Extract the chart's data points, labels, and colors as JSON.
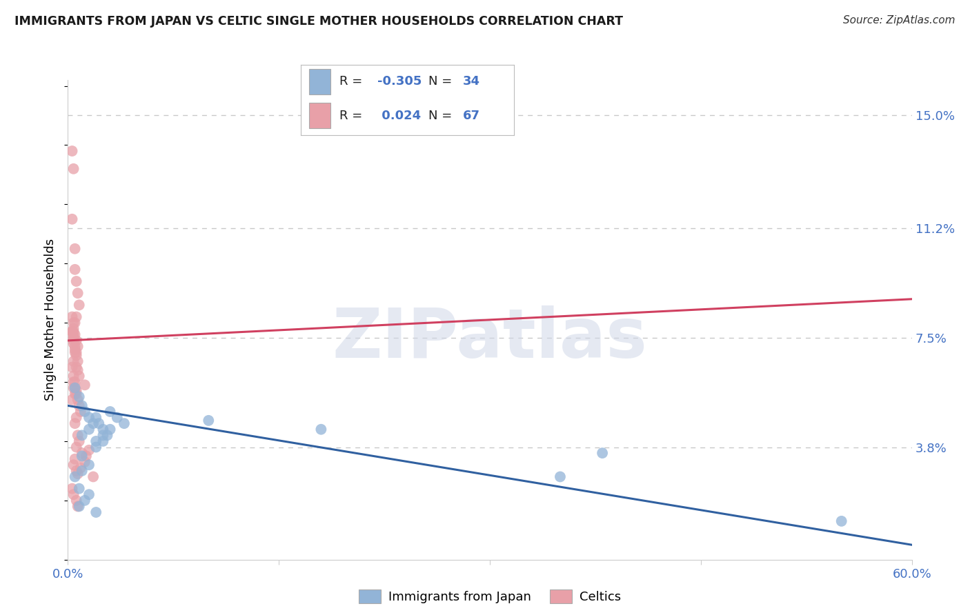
{
  "title": "IMMIGRANTS FROM JAPAN VS CELTIC SINGLE MOTHER HOUSEHOLDS CORRELATION CHART",
  "source": "Source: ZipAtlas.com",
  "ylabel": "Single Mother Households",
  "watermark": "ZIPatlas",
  "legend_blue_r": "-0.305",
  "legend_blue_n": "34",
  "legend_pink_r": "0.024",
  "legend_pink_n": "67",
  "xlim": [
    0.0,
    0.6
  ],
  "ylim": [
    0.0,
    0.162
  ],
  "ytick_vals": [
    0.038,
    0.075,
    0.112,
    0.15
  ],
  "ytick_labels": [
    "3.8%",
    "7.5%",
    "11.2%",
    "15.0%"
  ],
  "xtick_vals": [
    0.0,
    0.15,
    0.3,
    0.45,
    0.6
  ],
  "xtick_labels": [
    "0.0%",
    "",
    "",
    "",
    "60.0%"
  ],
  "blue_color": "#92b4d7",
  "pink_color": "#e8a0a8",
  "blue_line_color": "#3060a0",
  "pink_line_color": "#d04060",
  "grid_color": "#c8c8c8",
  "blue_scatter_x": [
    0.005,
    0.008,
    0.01,
    0.012,
    0.015,
    0.018,
    0.02,
    0.022,
    0.025,
    0.028,
    0.01,
    0.015,
    0.02,
    0.025,
    0.03,
    0.035,
    0.04,
    0.02,
    0.025,
    0.03,
    0.01,
    0.015,
    0.005,
    0.01,
    0.18,
    0.1,
    0.38,
    0.55,
    0.35,
    0.008,
    0.008,
    0.012,
    0.015,
    0.02
  ],
  "blue_scatter_y": [
    0.058,
    0.055,
    0.052,
    0.05,
    0.048,
    0.046,
    0.048,
    0.046,
    0.044,
    0.042,
    0.042,
    0.044,
    0.04,
    0.042,
    0.05,
    0.048,
    0.046,
    0.038,
    0.04,
    0.044,
    0.03,
    0.032,
    0.028,
    0.035,
    0.044,
    0.047,
    0.036,
    0.013,
    0.028,
    0.024,
    0.018,
    0.02,
    0.022,
    0.016
  ],
  "pink_scatter_x": [
    0.003,
    0.004,
    0.005,
    0.003,
    0.005,
    0.006,
    0.007,
    0.008,
    0.006,
    0.005,
    0.003,
    0.004,
    0.004,
    0.007,
    0.005,
    0.004,
    0.006,
    0.007,
    0.008,
    0.005,
    0.004,
    0.006,
    0.005,
    0.003,
    0.004,
    0.004,
    0.005,
    0.006,
    0.007,
    0.003,
    0.004,
    0.004,
    0.005,
    0.006,
    0.007,
    0.008,
    0.009,
    0.006,
    0.005,
    0.012,
    0.003,
    0.004,
    0.004,
    0.005,
    0.006,
    0.003,
    0.004,
    0.004,
    0.005,
    0.006,
    0.007,
    0.008,
    0.006,
    0.01,
    0.005,
    0.004,
    0.006,
    0.018,
    0.003,
    0.004,
    0.006,
    0.007,
    0.015,
    0.013,
    0.012,
    0.009,
    0.007
  ],
  "pink_scatter_y": [
    0.138,
    0.132,
    0.105,
    0.115,
    0.098,
    0.094,
    0.09,
    0.086,
    0.082,
    0.08,
    0.077,
    0.076,
    0.075,
    0.072,
    0.07,
    0.067,
    0.065,
    0.064,
    0.062,
    0.06,
    0.058,
    0.057,
    0.056,
    0.054,
    0.077,
    0.074,
    0.072,
    0.07,
    0.067,
    0.065,
    0.062,
    0.06,
    0.058,
    0.056,
    0.054,
    0.052,
    0.05,
    0.048,
    0.046,
    0.059,
    0.077,
    0.075,
    0.073,
    0.071,
    0.069,
    0.082,
    0.08,
    0.078,
    0.076,
    0.074,
    0.042,
    0.04,
    0.038,
    0.036,
    0.034,
    0.032,
    0.03,
    0.028,
    0.024,
    0.022,
    0.02,
    0.018,
    0.037,
    0.035,
    0.033,
    0.031,
    0.029
  ],
  "blue_line_x": [
    0.0,
    0.6
  ],
  "blue_line_y": [
    0.052,
    0.005
  ],
  "pink_line_x": [
    0.0,
    0.6
  ],
  "pink_line_y": [
    0.074,
    0.088
  ]
}
